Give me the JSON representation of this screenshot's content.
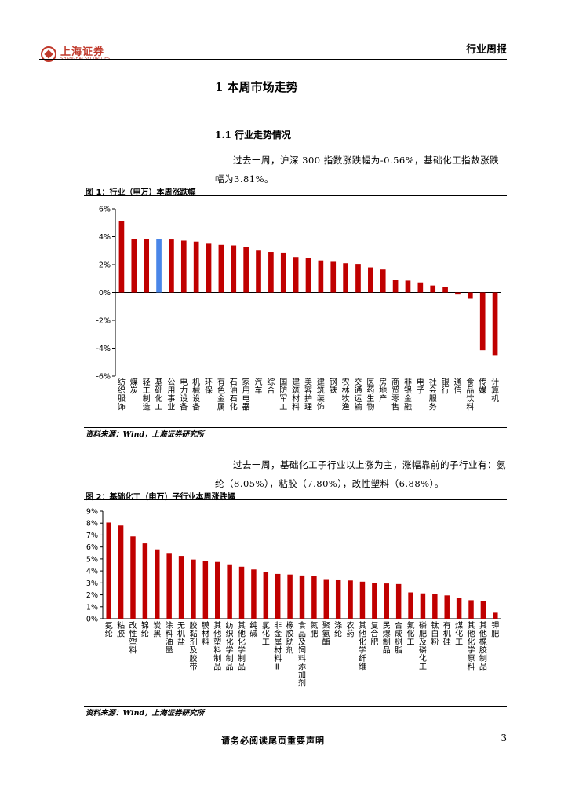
{
  "header": {
    "logo_cn": "上海证券",
    "logo_en": "SHANGHAI SECURITIES",
    "report_type": "行业周报"
  },
  "section": {
    "title": "1  本周市场走势"
  },
  "subsection": {
    "title": "1.1  行业走势情况"
  },
  "para1": "过去一周，沪深 300 指数涨跌幅为-0.56%，基础化工指数涨跌幅为3.81%。",
  "para2": "过去一周，基础化工子行业以上涨为主，涨幅靠前的子行业有：氨纶（8.05%），粘胶（7.80%），改性塑料（6.88%）。",
  "figure1": {
    "caption": "图 1：行业（申万）本周涨跌幅",
    "source": "资料来源：Wind，上海证券研究所"
  },
  "figure2": {
    "caption": "图 2：基础化工（申万）子行业本周涨跌幅",
    "source": "资料来源：Wind，上海证券研究所"
  },
  "footer": {
    "disclaimer": "请务必阅读尾页重要声明",
    "page": "3"
  },
  "colors": {
    "bar": "#c00000",
    "highlight": "#4a86e8",
    "logo": "#c0392b"
  },
  "chart_data": [
    {
      "type": "bar",
      "title": "行业（申万）本周涨跌幅",
      "ylim": [
        -6,
        6
      ],
      "yticks": [
        "6%",
        "4%",
        "2%",
        "0%",
        "-2%",
        "-4%",
        "-6%"
      ],
      "highlight": "基础化工",
      "categories": [
        "纺织服饰",
        "煤炭",
        "轻工制造",
        "基础化工",
        "公用事业",
        "电力设备",
        "机械设备",
        "环保",
        "有色金属",
        "石油石化",
        "家用电器",
        "汽车",
        "综合",
        "国防军工",
        "建筑材料",
        "美容护理",
        "建筑装饰",
        "钢铁",
        "农林牧渔",
        "交通运输",
        "医药生物",
        "房地产",
        "商贸零售",
        "非银金融",
        "电子",
        "社会服务",
        "银行",
        "通信",
        "食品饮料",
        "传媒",
        "计算机"
      ],
      "values": [
        5.1,
        3.85,
        3.82,
        3.81,
        3.8,
        3.72,
        3.65,
        3.5,
        3.42,
        3.38,
        3.25,
        3.0,
        2.9,
        2.85,
        2.55,
        2.5,
        2.3,
        2.2,
        2.1,
        2.05,
        1.8,
        1.65,
        0.88,
        0.85,
        0.72,
        0.5,
        0.38,
        -0.15,
        -0.45,
        -4.15,
        -4.5
      ]
    },
    {
      "type": "bar",
      "title": "基础化工（申万）子行业本周涨跌幅",
      "ylim": [
        0,
        9
      ],
      "yticks": [
        "9%",
        "8%",
        "7%",
        "6%",
        "5%",
        "4%",
        "3%",
        "2%",
        "1%",
        "0%"
      ],
      "categories": [
        "氨纶",
        "粘胶",
        "改性塑料",
        "锦纶",
        "炭黑",
        "涂料油墨",
        "无机盐",
        "胶黏剂及胶带",
        "膜材料",
        "其他塑料制品",
        "纺织化学制品",
        "其他化学制品",
        "纯碱",
        "氯化工",
        "非金属材料Ⅲ",
        "橡胶助剂",
        "食品及饲料添加剂",
        "氮肥",
        "聚氨酯",
        "涤纶",
        "农药",
        "其他化学纤维",
        "复合肥",
        "民爆制品",
        "合成树脂",
        "氟化工",
        "磷肥及磷化工",
        "钛白粉",
        "有机硅",
        "煤化工",
        "其他化学原料",
        "其他橡胶制品",
        "钾肥"
      ],
      "values": [
        8.05,
        7.8,
        6.88,
        6.3,
        5.8,
        5.5,
        5.25,
        4.95,
        4.85,
        4.75,
        4.55,
        4.35,
        4.12,
        3.9,
        3.75,
        3.7,
        3.62,
        3.55,
        3.25,
        3.22,
        3.2,
        3.1,
        2.98,
        2.95,
        2.9,
        2.2,
        2.12,
        2.05,
        1.95,
        1.75,
        1.55,
        1.48,
        0.5
      ]
    }
  ]
}
